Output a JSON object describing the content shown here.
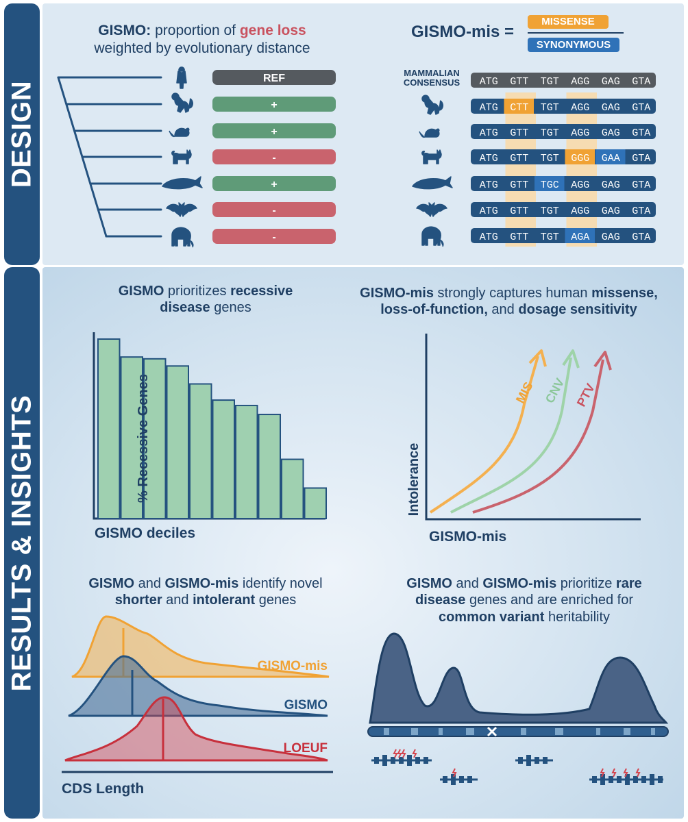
{
  "sidebar": {
    "design": "DESIGN",
    "results": "RESULTS & INSIGHTS"
  },
  "design": {
    "gismo_title_bold": "GISMO:",
    "gismo_title_rest1": " proportion of ",
    "gismo_title_loss": "gene loss",
    "gismo_title_line2": "weighted by evolutionary distance",
    "species_rows": [
      {
        "species": "human",
        "status": "REF",
        "color": "#555a5f"
      },
      {
        "species": "monkey",
        "status": "+",
        "color": "#5f9b78"
      },
      {
        "species": "mouse",
        "status": "+",
        "color": "#5f9b78"
      },
      {
        "species": "cat",
        "status": "-",
        "color": "#c9636d"
      },
      {
        "species": "whale",
        "status": "+",
        "color": "#5f9b78"
      },
      {
        "species": "bat",
        "status": "-",
        "color": "#c9636d"
      },
      {
        "species": "elephant",
        "status": "-",
        "color": "#c9636d"
      }
    ],
    "mis_label": "GISMO-mis =",
    "numerator": "MISSENSE",
    "denominator": "SYNONYMOUS",
    "consensus_label_line1": "MAMMALIAN",
    "consensus_label_line2": "CONSENSUS",
    "sequences": [
      {
        "species": "consensus",
        "codons": [
          "ATG",
          "GTT",
          "TGT",
          "AGG",
          "GAG",
          "GTA"
        ],
        "highlight": []
      },
      {
        "species": "monkey",
        "codons": [
          "ATG",
          "CTT",
          "TGT",
          "AGG",
          "GAG",
          "GTA"
        ],
        "highlight": [
          {
            "index": 1,
            "type": "missense"
          }
        ]
      },
      {
        "species": "mouse",
        "codons": [
          "ATG",
          "GTT",
          "TGT",
          "AGG",
          "GAG",
          "GTA"
        ],
        "highlight": []
      },
      {
        "species": "cat",
        "codons": [
          "ATG",
          "GTT",
          "TGT",
          "GGG",
          "GAA",
          "GTA"
        ],
        "highlight": [
          {
            "index": 3,
            "type": "missense"
          },
          {
            "index": 4,
            "type": "synonymous"
          }
        ]
      },
      {
        "species": "whale",
        "codons": [
          "ATG",
          "GTT",
          "TGC",
          "AGG",
          "GAG",
          "GTA"
        ],
        "highlight": [
          {
            "index": 2,
            "type": "synonymous"
          }
        ]
      },
      {
        "species": "bat",
        "codons": [
          "ATG",
          "GTT",
          "TGT",
          "AGG",
          "GAG",
          "GTA"
        ],
        "highlight": []
      },
      {
        "species": "elephant",
        "codons": [
          "ATG",
          "GTT",
          "TGT",
          "AGA",
          "GAG",
          "GTA"
        ],
        "highlight": [
          {
            "index": 3,
            "type": "synonymous"
          }
        ]
      }
    ],
    "colors": {
      "missense": "#f0a234",
      "synonymous": "#2f72b8",
      "seq_bg": "#24527f",
      "consensus_bg": "#555a5f",
      "column_hl": "#f6dcb2"
    }
  },
  "results": {
    "recessive": {
      "title_b1": "GISMO",
      "title_r1": " prioritizes ",
      "title_b2": "recessive",
      "title_b3": "disease",
      "title_r2": " genes",
      "ylabel": "% Recessive Genes",
      "xlabel": "GISMO deciles"
    },
    "mis": {
      "title_b1": "GISMO-mis",
      "title_r1": " strongly captures human ",
      "title_b2": "missense,",
      "title_b3": "loss-of-function,",
      "title_r2": " and ",
      "title_b4": "dosage sensitivity",
      "ylabel": "Intolerance",
      "xlabel": "GISMO-mis"
    },
    "cds": {
      "title_b1": "GISMO",
      "title_r1": " and ",
      "title_b2": "GISMO-mis",
      "title_r2": " identify novel",
      "title_b3": "shorter",
      "title_r3": " and ",
      "title_b4": "intolerant",
      "title_r4": " genes",
      "xlabel": "CDS Length",
      "labels": {
        "gismo_mis": "GISMO-mis",
        "gismo": "GISMO",
        "loeuf": "LOEUF"
      }
    },
    "rare": {
      "title_b1": "GISMO",
      "title_r1": " and ",
      "title_b2": "GISMO-mis",
      "title_r2": " prioritize ",
      "title_b3": "rare",
      "title_b4": "disease",
      "title_r3": " genes and are enriched for",
      "title_b5": "common variant",
      "title_r4": " heritability"
    }
  },
  "chart_data": [
    {
      "type": "bar",
      "categories": [
        "1",
        "2",
        "3",
        "4",
        "5",
        "6",
        "7",
        "8",
        "9",
        "10"
      ],
      "values": [
        100,
        90,
        89,
        85,
        75,
        66,
        63,
        58,
        33,
        17
      ],
      "title": "",
      "xlabel": "GISMO deciles",
      "ylabel": "% Recessive Genes",
      "ylim": [
        0,
        100
      ],
      "color": "#9fd0b0"
    },
    {
      "type": "line",
      "xlabel": "GISMO-mis",
      "ylabel": "Intolerance",
      "series": [
        {
          "name": "MIS",
          "color": "#f4b04f"
        },
        {
          "name": "CNV",
          "color": "#9ed3a8"
        },
        {
          "name": "PTV",
          "color": "#c9636d"
        }
      ]
    },
    {
      "type": "area",
      "xlabel": "CDS Length",
      "series": [
        {
          "name": "GISMO-mis",
          "color": "#f4b04f"
        },
        {
          "name": "GISMO",
          "color": "#4a6f97"
        },
        {
          "name": "LOEUF",
          "color": "#d4454f"
        }
      ]
    }
  ]
}
